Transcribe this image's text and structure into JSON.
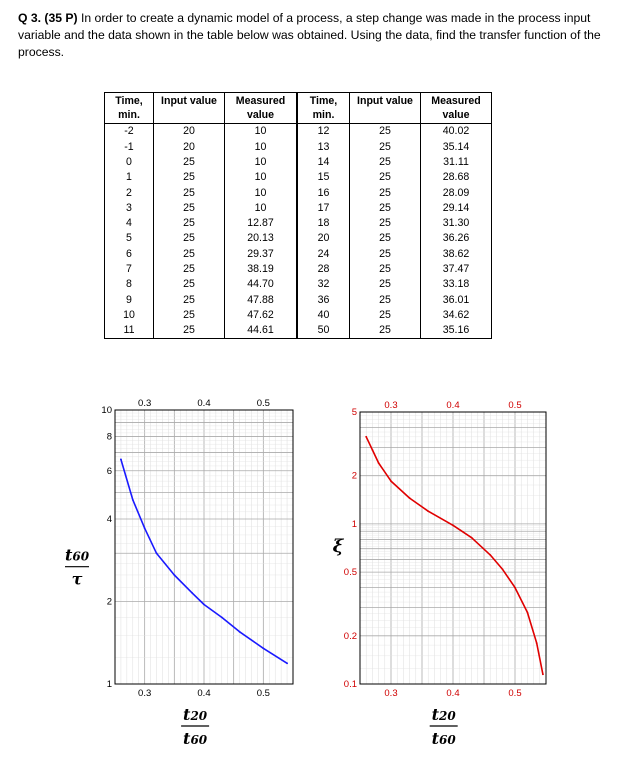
{
  "question": {
    "label": "Q 3. (35 P)",
    "text": " In order to create a dynamic model of a process, a step change was made in the process input variable and the data shown in the table below was obtained. Using the data, find the transfer function of the process."
  },
  "table": {
    "headers": [
      {
        "line1": "Time,",
        "line2": "min."
      },
      {
        "line1": "Input value",
        "line2": ""
      },
      {
        "line1": "Measured",
        "line2": "value"
      },
      {
        "line1": "Time,",
        "line2": "min."
      },
      {
        "line1": "Input value",
        "line2": ""
      },
      {
        "line1": "Measured",
        "line2": "value"
      }
    ],
    "rows": [
      [
        "-2",
        "20",
        "10",
        "12",
        "25",
        "40.02"
      ],
      [
        "-1",
        "20",
        "10",
        "13",
        "25",
        "35.14"
      ],
      [
        "0",
        "25",
        "10",
        "14",
        "25",
        "31.11"
      ],
      [
        "1",
        "25",
        "10",
        "15",
        "25",
        "28.68"
      ],
      [
        "2",
        "25",
        "10",
        "16",
        "25",
        "28.09"
      ],
      [
        "3",
        "25",
        "10",
        "17",
        "25",
        "29.14"
      ],
      [
        "4",
        "25",
        "12.87",
        "18",
        "25",
        "31.30"
      ],
      [
        "5",
        "25",
        "20.13",
        "20",
        "25",
        "36.26"
      ],
      [
        "6",
        "25",
        "29.37",
        "24",
        "25",
        "38.62"
      ],
      [
        "7",
        "25",
        "38.19",
        "28",
        "25",
        "37.47"
      ],
      [
        "8",
        "25",
        "44.70",
        "32",
        "25",
        "33.18"
      ],
      [
        "9",
        "25",
        "47.88",
        "36",
        "25",
        "36.01"
      ],
      [
        "10",
        "25",
        "47.62",
        "40",
        "25",
        "34.62"
      ],
      [
        "11",
        "25",
        "44.61",
        "50",
        "25",
        "35.16"
      ]
    ]
  },
  "chart_data": [
    {
      "type": "line",
      "scale_y": "log",
      "grid": true,
      "color": "#1a1aff",
      "xlim": [
        0.25,
        0.55
      ],
      "ylim": [
        1,
        10
      ],
      "x_ticks": [
        "0.3",
        "0.4",
        "0.5"
      ],
      "y_ticks": [
        "1",
        "2",
        "4",
        "6",
        "8",
        "10"
      ],
      "ylabel": {
        "num": "t",
        "num_sub": "60",
        "den": "τ"
      },
      "xlabel": {
        "num": "t",
        "num_sub": "20",
        "den": "t",
        "den_sub": "60"
      },
      "x": [
        0.26,
        0.28,
        0.3,
        0.32,
        0.35,
        0.38,
        0.4,
        0.43,
        0.46,
        0.5,
        0.54
      ],
      "y": [
        6.6,
        4.7,
        3.7,
        3.0,
        2.5,
        2.15,
        1.95,
        1.75,
        1.55,
        1.35,
        1.19
      ]
    },
    {
      "type": "line",
      "scale_y": "log",
      "grid": true,
      "color": "#e00000",
      "tick_color": "#d00000",
      "xlim": [
        0.25,
        0.55
      ],
      "ylim": [
        0.1,
        5
      ],
      "x_ticks": [
        "0.3",
        "0.4",
        "0.5"
      ],
      "y_ticks": [
        "0.1",
        "0.2",
        "0.5",
        "1",
        "2",
        "5"
      ],
      "ylabel": {
        "text": "ξ"
      },
      "xlabel": {
        "num": "t",
        "num_sub": "20",
        "den": "t",
        "den_sub": "60"
      },
      "x": [
        0.26,
        0.27,
        0.28,
        0.3,
        0.33,
        0.36,
        0.4,
        0.43,
        0.46,
        0.48,
        0.5,
        0.52,
        0.535,
        0.545
      ],
      "y": [
        3.5,
        2.9,
        2.4,
        1.85,
        1.45,
        1.2,
        0.98,
        0.82,
        0.64,
        0.52,
        0.4,
        0.28,
        0.18,
        0.115
      ]
    }
  ]
}
